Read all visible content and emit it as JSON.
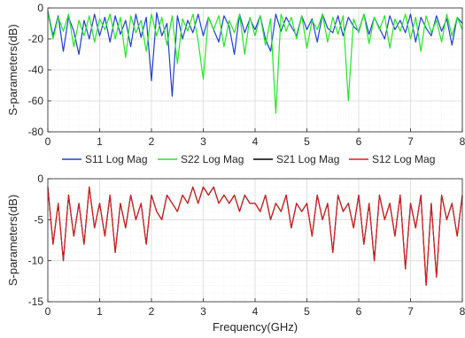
{
  "chart_data": [
    {
      "type": "line",
      "ylabel": "S-parameters(dB)",
      "xlabel": "",
      "xlim": [
        0,
        8
      ],
      "ylim": [
        -80,
        0
      ],
      "xticks": [
        0,
        1,
        2,
        3,
        4,
        5,
        6,
        7,
        8
      ],
      "yticks": [
        0,
        -20,
        -40,
        -60,
        -80
      ],
      "xtick_labels": [
        "0",
        "1",
        "2",
        "3",
        "4",
        "5",
        "6",
        "7",
        "8"
      ],
      "ytick_labels": [
        "0",
        "-20",
        "-40",
        "-60",
        "-80"
      ],
      "grid": true,
      "minor_grid": true,
      "series": [
        {
          "name": "S11 Log Mag",
          "color": "#1f3fd6",
          "x": [
            0,
            0.1,
            0.2,
            0.3,
            0.4,
            0.5,
            0.6,
            0.7,
            0.8,
            0.9,
            1.0,
            1.1,
            1.2,
            1.3,
            1.4,
            1.5,
            1.6,
            1.7,
            1.8,
            1.9,
            2.0,
            2.1,
            2.2,
            2.3,
            2.4,
            2.5,
            2.6,
            2.7,
            2.8,
            2.9,
            3.0,
            3.1,
            3.2,
            3.3,
            3.4,
            3.5,
            3.6,
            3.7,
            3.8,
            3.9,
            4.0,
            4.1,
            4.2,
            4.3,
            4.4,
            4.5,
            4.6,
            4.7,
            4.8,
            4.9,
            5.0,
            5.1,
            5.2,
            5.3,
            5.4,
            5.5,
            5.6,
            5.7,
            5.8,
            5.9,
            6.0,
            6.1,
            6.2,
            6.3,
            6.4,
            6.5,
            6.6,
            6.7,
            6.8,
            6.9,
            7.0,
            7.1,
            7.2,
            7.3,
            7.4,
            7.5,
            7.6,
            7.7,
            7.8,
            7.9,
            8.0
          ],
          "values": [
            -2,
            -18,
            -5,
            -28,
            -6,
            -15,
            -30,
            -8,
            -20,
            -4,
            -18,
            -6,
            -22,
            -5,
            -17,
            -8,
            -25,
            -4,
            -19,
            -6,
            -47,
            -3,
            -18,
            -10,
            -57,
            -5,
            -20,
            -8,
            -16,
            -4,
            -18,
            -6,
            -14,
            -22,
            -5,
            -12,
            -30,
            -4,
            -16,
            -7,
            -14,
            -5,
            -20,
            -28,
            -4,
            -15,
            -6,
            -12,
            -18,
            -5,
            -14,
            -7,
            -22,
            -4,
            -13,
            -16,
            -5,
            -18,
            -6,
            -12,
            -15,
            -4,
            -17,
            -6,
            -13,
            -20,
            -5,
            -14,
            -8,
            -16,
            -4,
            -22,
            -6,
            -13,
            -18,
            -5,
            -15,
            -7,
            -24,
            -6,
            -10
          ]
        },
        {
          "name": "S22 Log Mag",
          "color": "#22e822",
          "x": [
            0,
            0.1,
            0.2,
            0.3,
            0.4,
            0.5,
            0.6,
            0.7,
            0.8,
            0.9,
            1.0,
            1.1,
            1.2,
            1.3,
            1.4,
            1.5,
            1.6,
            1.7,
            1.8,
            1.9,
            2.0,
            2.1,
            2.2,
            2.3,
            2.4,
            2.5,
            2.6,
            2.7,
            2.8,
            2.9,
            3.0,
            3.1,
            3.2,
            3.3,
            3.4,
            3.5,
            3.6,
            3.7,
            3.8,
            3.9,
            4.0,
            4.1,
            4.2,
            4.3,
            4.4,
            4.5,
            4.6,
            4.7,
            4.8,
            4.9,
            5.0,
            5.1,
            5.2,
            5.3,
            5.4,
            5.5,
            5.6,
            5.7,
            5.8,
            5.9,
            6.0,
            6.1,
            6.2,
            6.3,
            6.4,
            6.5,
            6.6,
            6.7,
            6.8,
            6.9,
            7.0,
            7.1,
            7.2,
            7.3,
            7.4,
            7.5,
            7.6,
            7.7,
            7.8,
            7.9,
            8.0
          ],
          "values": [
            -3,
            -20,
            -6,
            -15,
            -4,
            -25,
            -8,
            -18,
            -5,
            -22,
            -7,
            -14,
            -4,
            -20,
            -6,
            -32,
            -5,
            -16,
            -8,
            -28,
            -4,
            -18,
            -6,
            -24,
            -5,
            -36,
            -7,
            -15,
            -4,
            -21,
            -46,
            -6,
            -14,
            -5,
            -25,
            -8,
            -16,
            -4,
            -30,
            -6,
            -18,
            -5,
            -24,
            -7,
            -68,
            -4,
            -15,
            -6,
            -20,
            -5,
            -26,
            -8,
            -14,
            -4,
            -22,
            -6,
            -17,
            -5,
            -60,
            -7,
            -16,
            -4,
            -23,
            -6,
            -14,
            -5,
            -26,
            -7,
            -15,
            -4,
            -20,
            -6,
            -28,
            -5,
            -16,
            -8,
            -22,
            -4,
            -18,
            -6,
            -14
          ]
        }
      ]
    },
    {
      "type": "line",
      "ylabel": "S-parameters(dB)",
      "xlabel": "Frequency(GHz)",
      "xlim": [
        0,
        8
      ],
      "ylim": [
        -15,
        0
      ],
      "xticks": [
        0,
        1,
        2,
        3,
        4,
        5,
        6,
        7,
        8
      ],
      "yticks": [
        0,
        -5,
        -10,
        -15
      ],
      "xtick_labels": [
        "0",
        "1",
        "2",
        "3",
        "4",
        "5",
        "6",
        "7",
        "8"
      ],
      "ytick_labels": [
        "0",
        "-5",
        "-10",
        "-15"
      ],
      "grid": true,
      "minor_grid": true,
      "series": [
        {
          "name": "S21 Log Mag",
          "color": "#000000",
          "x": [
            0,
            0.1,
            0.2,
            0.3,
            0.4,
            0.5,
            0.6,
            0.7,
            0.8,
            0.9,
            1.0,
            1.1,
            1.2,
            1.3,
            1.4,
            1.5,
            1.6,
            1.7,
            1.8,
            1.9,
            2.0,
            2.1,
            2.2,
            2.3,
            2.4,
            2.5,
            2.6,
            2.7,
            2.8,
            2.9,
            3.0,
            3.1,
            3.2,
            3.3,
            3.4,
            3.5,
            3.6,
            3.7,
            3.8,
            3.9,
            4.0,
            4.1,
            4.2,
            4.3,
            4.4,
            4.5,
            4.6,
            4.7,
            4.8,
            4.9,
            5.0,
            5.1,
            5.2,
            5.3,
            5.4,
            5.5,
            5.6,
            5.7,
            5.8,
            5.9,
            6.0,
            6.1,
            6.2,
            6.3,
            6.4,
            6.5,
            6.6,
            6.7,
            6.8,
            6.9,
            7.0,
            7.1,
            7.2,
            7.3,
            7.4,
            7.5,
            7.6,
            7.7,
            7.8,
            7.9,
            8.0
          ],
          "values": [
            -1,
            -8,
            -3,
            -10,
            -2,
            -7,
            -3,
            -8,
            -1,
            -6,
            -3,
            -7,
            -2,
            -9,
            -3,
            -6,
            -2,
            -5,
            -3,
            -8,
            -2,
            -4,
            -5,
            -2,
            -3,
            -4,
            -2,
            -3,
            -1,
            -3,
            -1,
            -2,
            -1,
            -3,
            -2,
            -3,
            -2,
            -4,
            -2,
            -3,
            -3,
            -4,
            -2,
            -5,
            -3,
            -4,
            -2,
            -6,
            -3,
            -4,
            -3,
            -7,
            -2,
            -5,
            -3,
            -9,
            -2,
            -4,
            -3,
            -6,
            -2,
            -8,
            -3,
            -10,
            -2,
            -5,
            -3,
            -7,
            -2,
            -11,
            -3,
            -6,
            -2,
            -13,
            -3,
            -12,
            -2,
            -5,
            -3,
            -7,
            -2
          ]
        },
        {
          "name": "S12 Log Mag",
          "color": "#e01b1b",
          "x": [
            0,
            0.1,
            0.2,
            0.3,
            0.4,
            0.5,
            0.6,
            0.7,
            0.8,
            0.9,
            1.0,
            1.1,
            1.2,
            1.3,
            1.4,
            1.5,
            1.6,
            1.7,
            1.8,
            1.9,
            2.0,
            2.1,
            2.2,
            2.3,
            2.4,
            2.5,
            2.6,
            2.7,
            2.8,
            2.9,
            3.0,
            3.1,
            3.2,
            3.3,
            3.4,
            3.5,
            3.6,
            3.7,
            3.8,
            3.9,
            4.0,
            4.1,
            4.2,
            4.3,
            4.4,
            4.5,
            4.6,
            4.7,
            4.8,
            4.9,
            5.0,
            5.1,
            5.2,
            5.3,
            5.4,
            5.5,
            5.6,
            5.7,
            5.8,
            5.9,
            6.0,
            6.1,
            6.2,
            6.3,
            6.4,
            6.5,
            6.6,
            6.7,
            6.8,
            6.9,
            7.0,
            7.1,
            7.2,
            7.3,
            7.4,
            7.5,
            7.6,
            7.7,
            7.8,
            7.9,
            8.0
          ],
          "values": [
            -1,
            -8,
            -3,
            -10,
            -2,
            -7,
            -3,
            -8,
            -1,
            -6,
            -3,
            -7,
            -2,
            -9,
            -3,
            -6,
            -2,
            -5,
            -3,
            -8,
            -2,
            -4,
            -5,
            -2,
            -3,
            -4,
            -2,
            -3,
            -1,
            -3,
            -1,
            -2,
            -1,
            -3,
            -2,
            -3,
            -2,
            -4,
            -2,
            -3,
            -3,
            -4,
            -2,
            -5,
            -3,
            -4,
            -2,
            -6,
            -3,
            -4,
            -3,
            -7,
            -2,
            -5,
            -3,
            -9,
            -2,
            -4,
            -3,
            -6,
            -2,
            -8,
            -3,
            -10,
            -2,
            -5,
            -3,
            -7,
            -2,
            -11,
            -3,
            -6,
            -2,
            -13,
            -3,
            -12,
            -2,
            -5,
            -3,
            -7,
            -2
          ]
        }
      ]
    }
  ],
  "legend": {
    "placement": "between-plots",
    "entries": [
      {
        "label": "S11 Log Mag",
        "color": "#1f3fd6"
      },
      {
        "label": "S22 Log Mag",
        "color": "#22e822"
      },
      {
        "label": "S21 Log Mag",
        "color": "#000000"
      },
      {
        "label": "S12 Log Mag",
        "color": "#e01b1b"
      }
    ]
  }
}
